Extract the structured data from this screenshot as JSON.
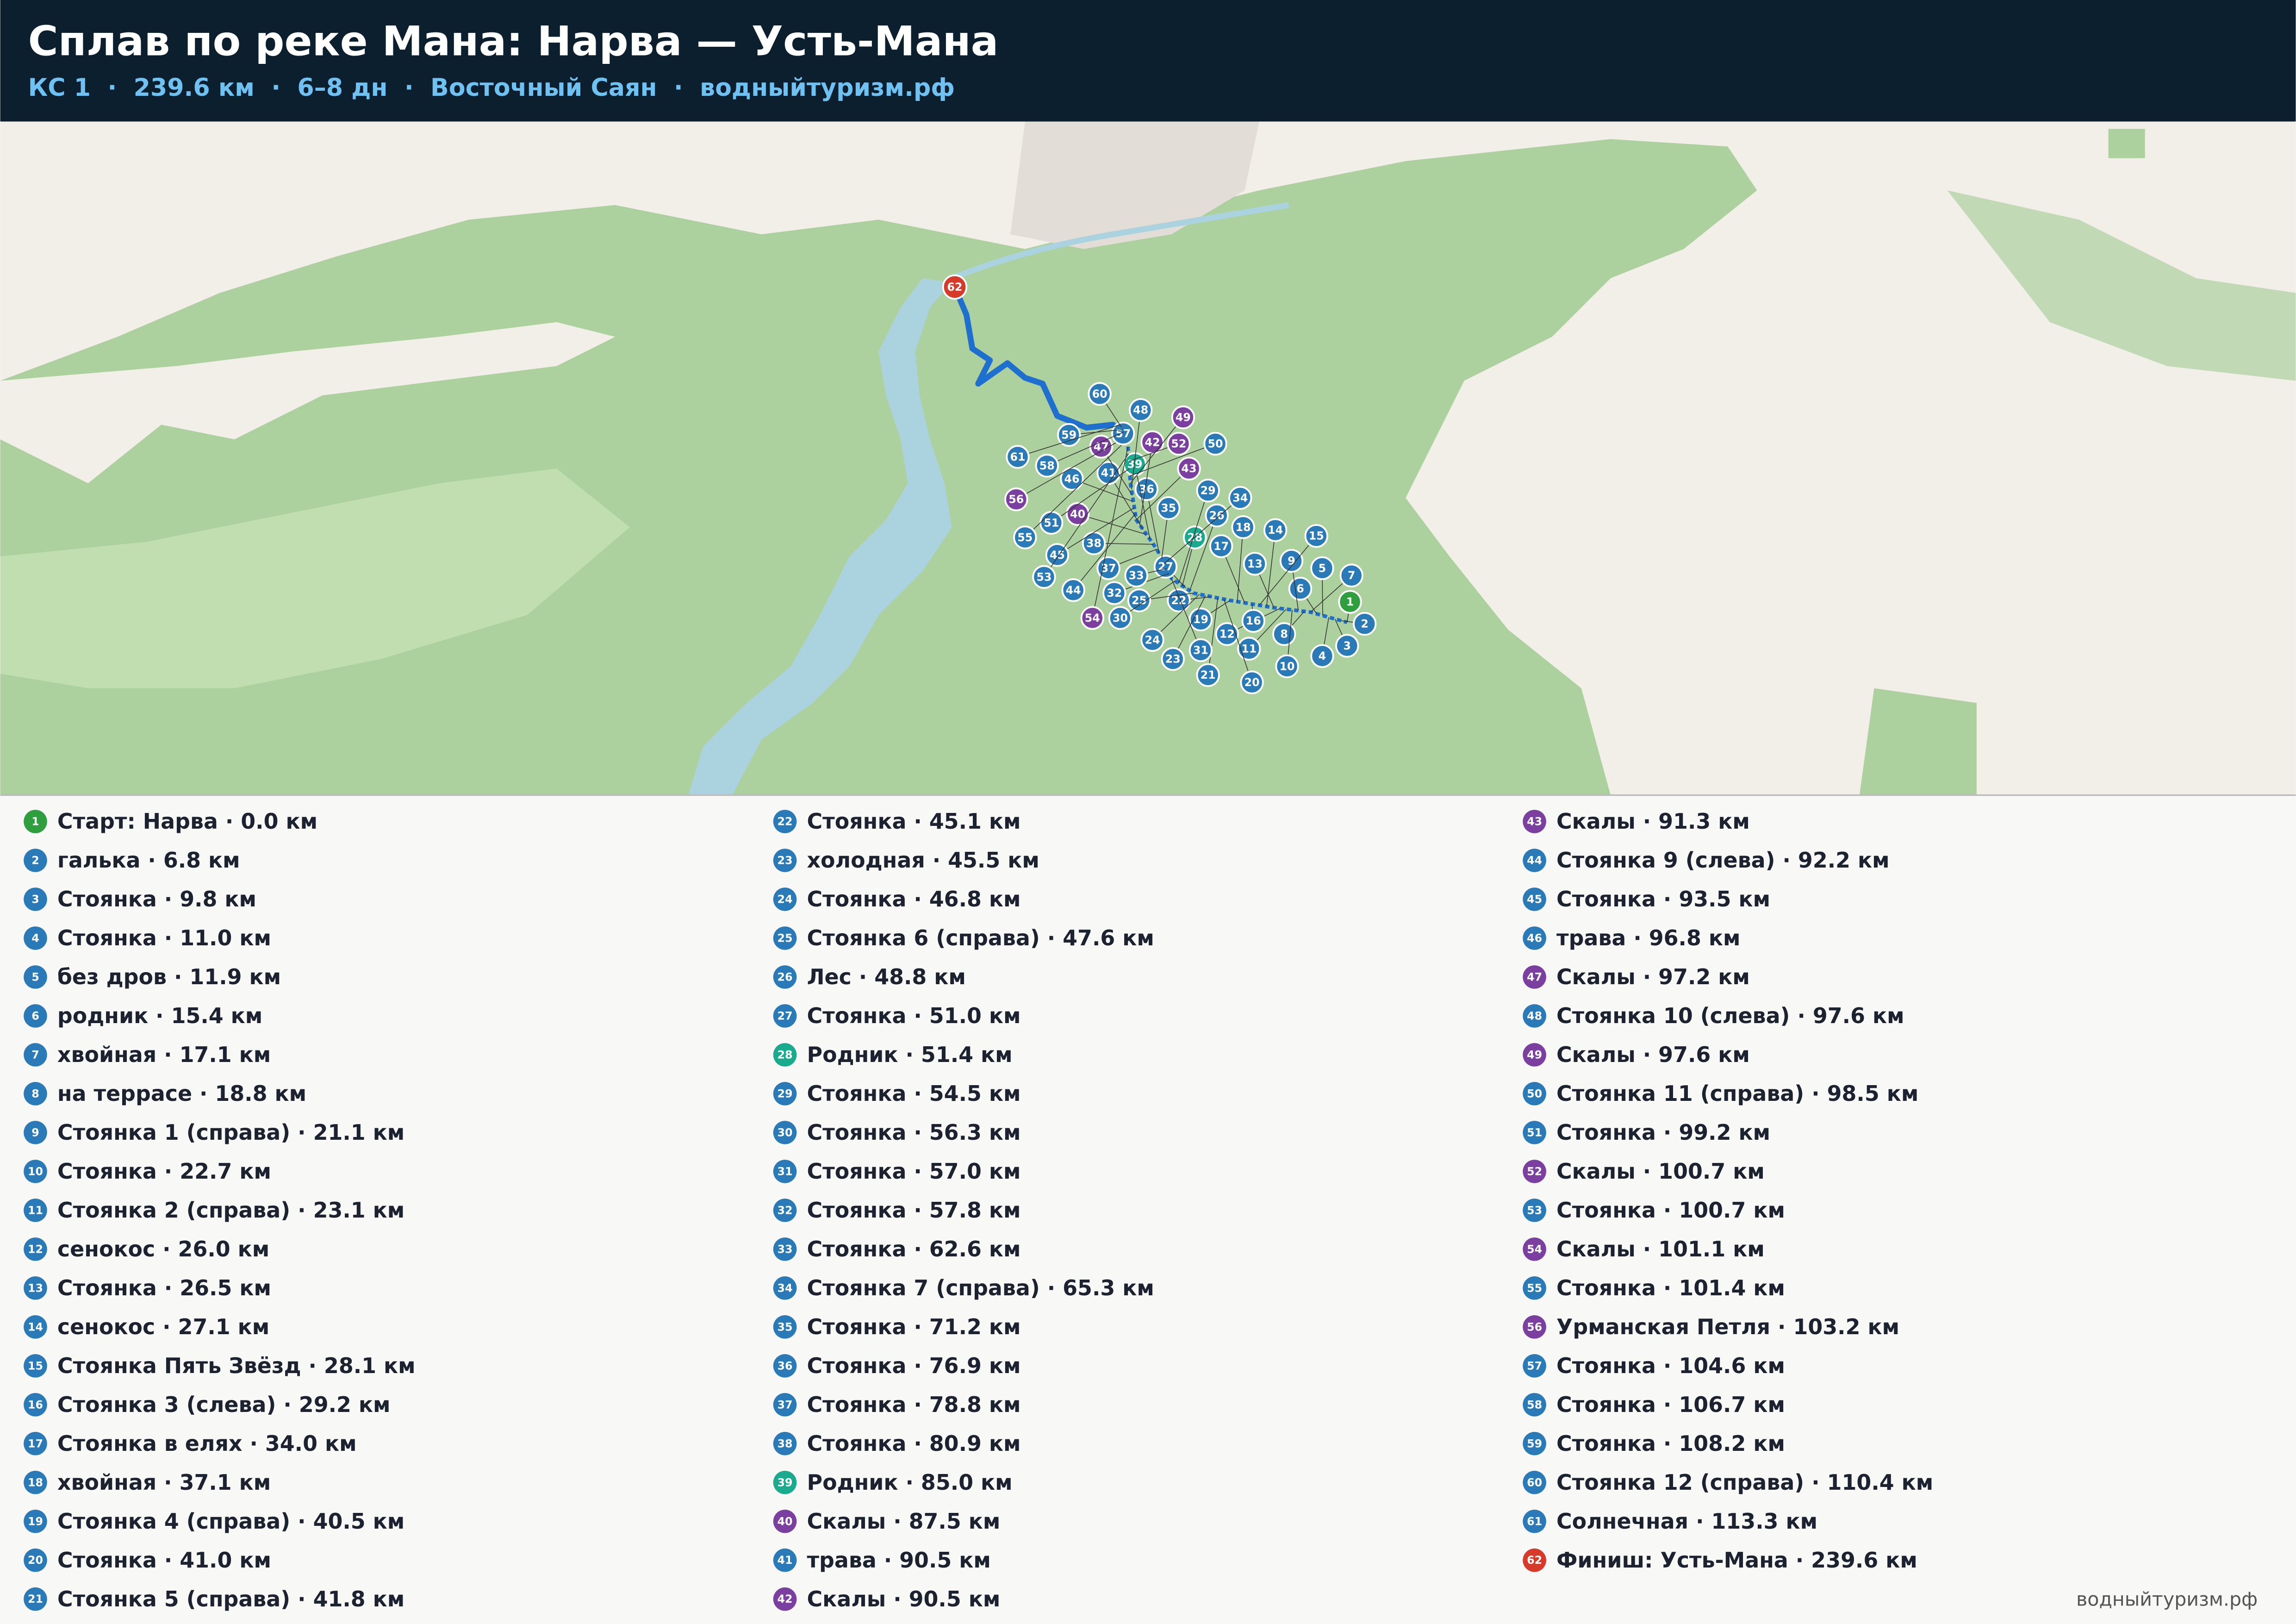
{
  "header": {
    "title": "Сплав по реке Мана: Нарва — Усть-Мана",
    "subtitle": "КС 1  ·  239.6 км  ·  6–8 дн  ·  Восточный Саян  ·  водныйтуризм.рф"
  },
  "points": [
    {
      "num": 1,
      "label": "Старт: Нарва · 0.0 км",
      "color": "#2e9e3e"
    },
    {
      "num": 2,
      "label": "галька · 6.8 км",
      "color": "#2a7ab8"
    },
    {
      "num": 3,
      "label": "Стоянка · 9.8 км",
      "color": "#2a7ab8"
    },
    {
      "num": 4,
      "label": "Стоянка · 11.0 км",
      "color": "#2a7ab8"
    },
    {
      "num": 5,
      "label": "без дров · 11.9 км",
      "color": "#2a7ab8"
    },
    {
      "num": 6,
      "label": "родник · 15.4 км",
      "color": "#2a7ab8"
    },
    {
      "num": 7,
      "label": "хвойная · 17.1 км",
      "color": "#2a7ab8"
    },
    {
      "num": 8,
      "label": "на террасе · 18.8 км",
      "color": "#2a7ab8"
    },
    {
      "num": 9,
      "label": "Стоянка 1 (справа) · 21.1 км",
      "color": "#2a7ab8"
    },
    {
      "num": 10,
      "label": "Стоянка · 22.7 км",
      "color": "#2a7ab8"
    },
    {
      "num": 11,
      "label": "Стоянка 2 (справа) · 23.1 км",
      "color": "#2a7ab8"
    },
    {
      "num": 12,
      "label": "сенокос · 26.0 км",
      "color": "#2a7ab8"
    },
    {
      "num": 13,
      "label": "Стоянка · 26.5 км",
      "color": "#2a7ab8"
    },
    {
      "num": 14,
      "label": "сенокос · 27.1 км",
      "color": "#2a7ab8"
    },
    {
      "num": 15,
      "label": "Стоянка Пять Звёзд · 28.1 км",
      "color": "#2a7ab8"
    },
    {
      "num": 16,
      "label": "Стоянка 3 (слева) · 29.2 км",
      "color": "#2a7ab8"
    },
    {
      "num": 17,
      "label": "Стоянка в елях · 34.0 км",
      "color": "#2a7ab8"
    },
    {
      "num": 18,
      "label": "хвойная · 37.1 км",
      "color": "#2a7ab8"
    },
    {
      "num": 19,
      "label": "Стоянка 4 (справа) · 40.5 км",
      "color": "#2a7ab8"
    },
    {
      "num": 20,
      "label": "Стоянка · 41.0 км",
      "color": "#2a7ab8"
    },
    {
      "num": 21,
      "label": "Стоянка 5 (справа) · 41.8 км",
      "color": "#2a7ab8"
    },
    {
      "num": 22,
      "label": "Стоянка · 45.1 км",
      "color": "#2a7ab8"
    },
    {
      "num": 23,
      "label": "холодная · 45.5 км",
      "color": "#2a7ab8"
    },
    {
      "num": 24,
      "label": "Стоянка · 46.8 км",
      "color": "#2a7ab8"
    },
    {
      "num": 25,
      "label": "Стоянка 6 (справа) · 47.6 км",
      "color": "#2a7ab8"
    },
    {
      "num": 26,
      "label": "Лес · 48.8 км",
      "color": "#2a7ab8"
    },
    {
      "num": 27,
      "label": "Стоянка · 51.0 км",
      "color": "#2a7ab8"
    },
    {
      "num": 28,
      "label": "Родник · 51.4 км",
      "color": "#1aaa8e"
    },
    {
      "num": 29,
      "label": "Стоянка · 54.5 км",
      "color": "#2a7ab8"
    },
    {
      "num": 30,
      "label": "Стоянка · 56.3 км",
      "color": "#2a7ab8"
    },
    {
      "num": 31,
      "label": "Стоянка · 57.0 км",
      "color": "#2a7ab8"
    },
    {
      "num": 32,
      "label": "Стоянка · 57.8 км",
      "color": "#2a7ab8"
    },
    {
      "num": 33,
      "label": "Стоянка · 62.6 км",
      "color": "#2a7ab8"
    },
    {
      "num": 34,
      "label": "Стоянка 7 (справа) · 65.3 км",
      "color": "#2a7ab8"
    },
    {
      "num": 35,
      "label": "Стоянка · 71.2 км",
      "color": "#2a7ab8"
    },
    {
      "num": 36,
      "label": "Стоянка · 76.9 км",
      "color": "#2a7ab8"
    },
    {
      "num": 37,
      "label": "Стоянка · 78.8 км",
      "color": "#2a7ab8"
    },
    {
      "num": 38,
      "label": "Стоянка · 80.9 км",
      "color": "#2a7ab8"
    },
    {
      "num": 39,
      "label": "Родник · 85.0 км",
      "color": "#1aaa8e"
    },
    {
      "num": 40,
      "label": "Скалы · 87.5 км",
      "color": "#7b3fa0"
    },
    {
      "num": 41,
      "label": "трава · 90.5 км",
      "color": "#2a7ab8"
    },
    {
      "num": 42,
      "label": "Скалы · 90.5 км",
      "color": "#7b3fa0"
    },
    {
      "num": 43,
      "label": "Скалы · 91.3 км",
      "color": "#7b3fa0"
    },
    {
      "num": 44,
      "label": "Стоянка 9 (слева) · 92.2 км",
      "color": "#2a7ab8"
    },
    {
      "num": 45,
      "label": "Стоянка · 93.5 км",
      "color": "#2a7ab8"
    },
    {
      "num": 46,
      "label": "трава · 96.8 км",
      "color": "#2a7ab8"
    },
    {
      "num": 47,
      "label": "Скалы · 97.2 км",
      "color": "#7b3fa0"
    },
    {
      "num": 48,
      "label": "Стоянка 10 (слева) · 97.6 км",
      "color": "#2a7ab8"
    },
    {
      "num": 49,
      "label": "Скалы · 97.6 км",
      "color": "#7b3fa0"
    },
    {
      "num": 50,
      "label": "Стоянка 11 (справа) · 98.5 км",
      "color": "#2a7ab8"
    },
    {
      "num": 51,
      "label": "Стоянка · 99.2 км",
      "color": "#2a7ab8"
    },
    {
      "num": 52,
      "label": "Скалы · 100.7 км",
      "color": "#7b3fa0"
    },
    {
      "num": 53,
      "label": "Стоянка · 100.7 км",
      "color": "#2a7ab8"
    },
    {
      "num": 54,
      "label": "Скалы · 101.1 км",
      "color": "#7b3fa0"
    },
    {
      "num": 55,
      "label": "Стоянка · 101.4 км",
      "color": "#2a7ab8"
    },
    {
      "num": 56,
      "label": "Урманская Петля · 103.2 км",
      "color": "#7b3fa0"
    },
    {
      "num": 57,
      "label": "Стоянка · 104.6 км",
      "color": "#2a7ab8"
    },
    {
      "num": 58,
      "label": "Стоянка · 106.7 км",
      "color": "#2a7ab8"
    },
    {
      "num": 59,
      "label": "Стоянка · 108.2 км",
      "color": "#2a7ab8"
    },
    {
      "num": 60,
      "label": "Стоянка 12 (справа) · 110.4 км",
      "color": "#2a7ab8"
    },
    {
      "num": 61,
      "label": "Солнечная · 113.3 км",
      "color": "#2a7ab8"
    },
    {
      "num": 62,
      "label": "Финиш: Усть-Мана · 239.6 км",
      "color": "#d63a2a"
    }
  ],
  "footer": "водныйтуризм.рф"
}
